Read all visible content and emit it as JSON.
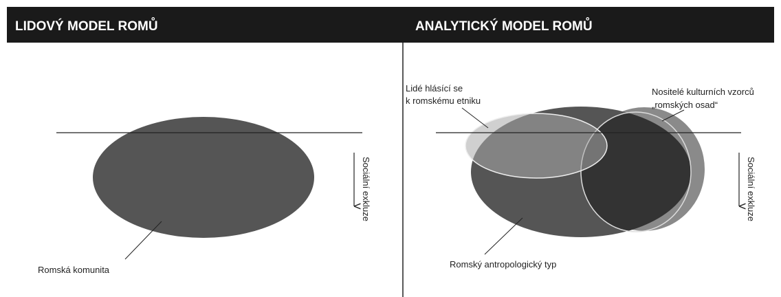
{
  "left": {
    "title": "LIDOVÝ MODEL ROMŮ",
    "community_label": "Romská komunita",
    "axis_label": "Sociální exkluze"
  },
  "right": {
    "title": "ANALYTICKÝ MODEL ROMŮ",
    "ethnic_label": [
      "Lidé hlásící se",
      "k romskému etniku"
    ],
    "culture_label": [
      "Nositelé kulturních vzorců",
      "„romských osad“"
    ],
    "anthro_label": "Romský antropologický typ",
    "axis_label": "Sociální exkluze"
  }
}
